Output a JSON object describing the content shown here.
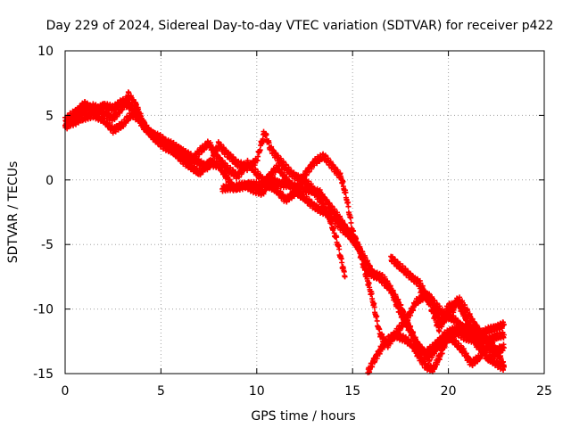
{
  "chart_data": {
    "type": "scatter",
    "title": "Day 229 of 2024, Sidereal Day-to-day VTEC variation (SDTVAR) for receiver p422",
    "xlabel": "GPS time / hours",
    "ylabel": "SDTVAR / TECUs",
    "xlim": [
      0,
      25
    ],
    "ylim": [
      -15,
      10
    ],
    "xticks": [
      0,
      5,
      10,
      15,
      20,
      25
    ],
    "yticks": [
      -15,
      -10,
      -5,
      0,
      5,
      10
    ],
    "xtick_labels": [
      "0",
      "5",
      "10",
      "15",
      "20",
      "25"
    ],
    "ytick_labels": [
      "-15",
      "-10",
      "-5",
      "0",
      "5",
      "10"
    ],
    "grid": true,
    "marker": "+",
    "color": "#ff0000",
    "series": [
      {
        "name": "track-1",
        "points": [
          [
            0,
            4.1
          ],
          [
            0.5,
            4.8
          ],
          [
            1,
            5.4
          ],
          [
            1.5,
            5.7
          ],
          [
            2,
            5.2
          ],
          [
            2.5,
            4.8
          ],
          [
            3,
            5.6
          ],
          [
            3.3,
            6.6
          ],
          [
            3.7,
            5.8
          ],
          [
            4.2,
            3.9
          ],
          [
            5,
            3.1
          ],
          [
            6,
            2.4
          ],
          [
            6.8,
            1.5
          ],
          [
            7.5,
            1.0
          ],
          [
            8,
            2.7
          ],
          [
            8.5,
            2.0
          ],
          [
            9,
            1.2
          ],
          [
            9.5,
            1.0
          ],
          [
            10,
            1.5
          ],
          [
            10.4,
            3.7
          ],
          [
            10.7,
            2.5
          ],
          [
            11.2,
            1.5
          ],
          [
            11.8,
            0.5
          ],
          [
            12.4,
            0.0
          ],
          [
            12.8,
            -0.5
          ],
          [
            13.3,
            -1.5
          ],
          [
            13.8,
            -3.0
          ],
          [
            14.2,
            -4.8
          ],
          [
            14.6,
            -7.5
          ]
        ]
      },
      {
        "name": "track-2",
        "points": [
          [
            0,
            4.6
          ],
          [
            0.5,
            5.2
          ],
          [
            1,
            5.9
          ],
          [
            1.5,
            5.3
          ],
          [
            2,
            5.8
          ],
          [
            2.5,
            5.5
          ],
          [
            3,
            6.1
          ],
          [
            3.5,
            5.6
          ],
          [
            4,
            4.3
          ],
          [
            4.5,
            3.6
          ],
          [
            5,
            3.2
          ],
          [
            6,
            2.1
          ],
          [
            6.5,
            1.4
          ],
          [
            7,
            2.2
          ],
          [
            7.5,
            2.8
          ],
          [
            8,
            1.7
          ],
          [
            8.5,
            0.8
          ],
          [
            9,
            0.3
          ],
          [
            9.5,
            1.3
          ],
          [
            10,
            0.5
          ],
          [
            10.5,
            -0.3
          ],
          [
            11,
            -0.8
          ],
          [
            11.5,
            -1.5
          ],
          [
            12,
            -1.0
          ],
          [
            12.5,
            0.4
          ],
          [
            13,
            1.4
          ],
          [
            13.5,
            1.8
          ],
          [
            14,
            1.0
          ],
          [
            14.4,
            0.2
          ],
          [
            14.7,
            -1.5
          ],
          [
            15,
            -4.0
          ],
          [
            15.4,
            -5.5
          ],
          [
            15.8,
            -7.2
          ],
          [
            16.4,
            -7.5
          ],
          [
            17,
            -8.5
          ],
          [
            17.5,
            -9.8
          ],
          [
            18,
            -11.5
          ],
          [
            18.5,
            -13.2
          ],
          [
            19,
            -13.8
          ],
          [
            19.4,
            -13.0
          ],
          [
            19.8,
            -12.5
          ],
          [
            20.4,
            -11.8
          ],
          [
            21,
            -11.3
          ],
          [
            21.6,
            -12.0
          ],
          [
            22.3,
            -11.5
          ],
          [
            22.9,
            -11.2
          ]
        ]
      },
      {
        "name": "track-3",
        "points": [
          [
            0,
            4.3
          ],
          [
            0.5,
            4.5
          ],
          [
            1,
            4.8
          ],
          [
            1.5,
            5.1
          ],
          [
            2,
            4.6
          ],
          [
            2.5,
            3.9
          ],
          [
            3,
            4.3
          ],
          [
            3.5,
            5.1
          ],
          [
            4,
            4.6
          ],
          [
            4.5,
            3.4
          ],
          [
            5,
            2.8
          ],
          [
            5.5,
            2.3
          ],
          [
            6,
            1.7
          ],
          [
            6.5,
            1.1
          ],
          [
            7,
            0.5
          ],
          [
            7.5,
            1.4
          ],
          [
            8,
            1.1
          ],
          [
            8.4,
            0.3
          ],
          [
            8.8,
            -0.6
          ],
          [
            9.3,
            -0.4
          ],
          [
            9.8,
            -0.7
          ],
          [
            10.3,
            -1.0
          ],
          [
            10.8,
            0.0
          ],
          [
            11.3,
            -0.3
          ],
          [
            12,
            -0.5
          ],
          [
            12.7,
            -0.8
          ],
          [
            13.3,
            -1.0
          ],
          [
            13.8,
            -2.0
          ],
          [
            14.3,
            -3.0
          ],
          [
            14.7,
            -3.8
          ],
          [
            15.2,
            -5.0
          ],
          [
            15.6,
            -6.0
          ],
          [
            16.1,
            -7.3
          ],
          [
            16.6,
            -7.6
          ],
          [
            17,
            -8.5
          ],
          [
            17.4,
            -10.0
          ],
          [
            17.8,
            -11.2
          ],
          [
            18.3,
            -12.5
          ],
          [
            18.8,
            -13.5
          ],
          [
            19.3,
            -12.8
          ],
          [
            19.8,
            -12.0
          ],
          [
            20.3,
            -11.6
          ],
          [
            20.9,
            -12.2
          ],
          [
            21.5,
            -12.5
          ],
          [
            22.2,
            -12.3
          ],
          [
            22.9,
            -12.0
          ]
        ]
      },
      {
        "name": "track-4",
        "points": [
          [
            8.2,
            -0.6
          ],
          [
            9,
            -0.6
          ],
          [
            9.6,
            -0.3
          ],
          [
            10.2,
            -0.5
          ],
          [
            10.7,
            0.4
          ],
          [
            11.1,
            1.0
          ],
          [
            11.6,
            -0.1
          ],
          [
            12.2,
            -1.1
          ],
          [
            12.8,
            -1.8
          ],
          [
            13.3,
            -2.3
          ],
          [
            13.8,
            -2.7
          ],
          [
            14.3,
            -3.5
          ],
          [
            14.8,
            -4.3
          ],
          [
            15.3,
            -5.2
          ],
          [
            15.6,
            -6.8
          ],
          [
            16,
            -9.0
          ],
          [
            16.4,
            -11.8
          ],
          [
            16.8,
            -12.8
          ],
          [
            17.3,
            -11.8
          ],
          [
            17.8,
            -10.8
          ],
          [
            18.3,
            -9.5
          ],
          [
            18.8,
            -9.0
          ],
          [
            19.2,
            -9.6
          ],
          [
            19.6,
            -11.0
          ],
          [
            20,
            -9.8
          ],
          [
            20.5,
            -9.5
          ],
          [
            21,
            -11.0
          ],
          [
            21.5,
            -12.3
          ],
          [
            22,
            -13.8
          ],
          [
            22.5,
            -14.2
          ],
          [
            22.9,
            -14.5
          ]
        ]
      },
      {
        "name": "track-5",
        "points": [
          [
            15.8,
            -14.9
          ],
          [
            16.1,
            -14.0
          ],
          [
            16.5,
            -13.0
          ],
          [
            16.9,
            -12.3
          ],
          [
            17.3,
            -12.0
          ],
          [
            17.7,
            -12.3
          ],
          [
            18.1,
            -12.8
          ],
          [
            18.4,
            -13.5
          ],
          [
            18.8,
            -14.4
          ],
          [
            19.2,
            -14.7
          ],
          [
            19.6,
            -13.5
          ],
          [
            20,
            -12.0
          ],
          [
            20.4,
            -12.7
          ],
          [
            20.8,
            -13.3
          ],
          [
            21.2,
            -14.2
          ],
          [
            21.6,
            -13.8
          ],
          [
            22,
            -12.9
          ],
          [
            22.4,
            -13.5
          ],
          [
            22.9,
            -13.0
          ]
        ]
      },
      {
        "name": "track-6",
        "points": [
          [
            17,
            -6.0
          ],
          [
            17.5,
            -6.8
          ],
          [
            18,
            -7.4
          ],
          [
            18.5,
            -8.0
          ],
          [
            19,
            -9.5
          ],
          [
            19.5,
            -11.5
          ],
          [
            19.9,
            -10.6
          ],
          [
            20.3,
            -10.8
          ],
          [
            20.7,
            -11.3
          ],
          [
            21.1,
            -12.0
          ],
          [
            21.5,
            -12.8
          ],
          [
            21.9,
            -13.2
          ],
          [
            22.3,
            -12.8
          ],
          [
            22.7,
            -13.8
          ],
          [
            22.9,
            -14.4
          ]
        ]
      },
      {
        "name": "track-7",
        "points": [
          [
            18.5,
            -8.5
          ],
          [
            19,
            -9.0
          ],
          [
            19.4,
            -9.8
          ],
          [
            19.8,
            -10.5
          ],
          [
            20.2,
            -10.2
          ],
          [
            20.5,
            -9.2
          ],
          [
            20.9,
            -10.0
          ],
          [
            21.2,
            -10.8
          ],
          [
            21.6,
            -11.7
          ],
          [
            22,
            -12.5
          ],
          [
            22.4,
            -13.2
          ],
          [
            22.8,
            -13.0
          ]
        ]
      }
    ]
  }
}
